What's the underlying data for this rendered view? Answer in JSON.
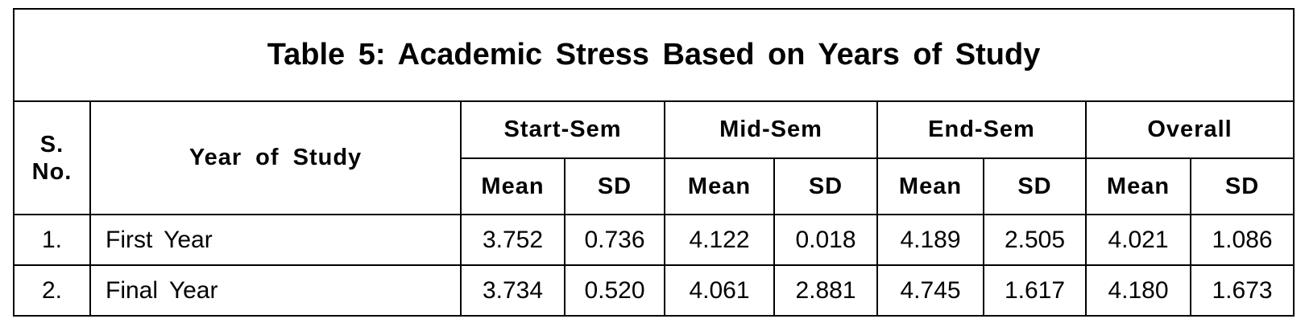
{
  "table": {
    "title": "Table 5: Academic Stress Based on Years of Study",
    "header": {
      "sno": "S.\nNo.",
      "year": "Year of Study",
      "groups": [
        "Start-Sem",
        "Mid-Sem",
        "End-Sem",
        "Overall"
      ],
      "subheaders": [
        "Mean",
        "SD",
        "Mean",
        "SD",
        "Mean",
        "SD",
        "Mean",
        "SD"
      ]
    },
    "rows": [
      [
        "1.",
        "First Year",
        "3.752",
        "0.736",
        "4.122",
        "0.018",
        "4.189",
        "2.505",
        "4.021",
        "1.086"
      ],
      [
        "2.",
        "Final Year",
        "3.734",
        "0.520",
        "4.061",
        "2.881",
        "4.745",
        "1.617",
        "4.180",
        "1.673"
      ]
    ]
  }
}
